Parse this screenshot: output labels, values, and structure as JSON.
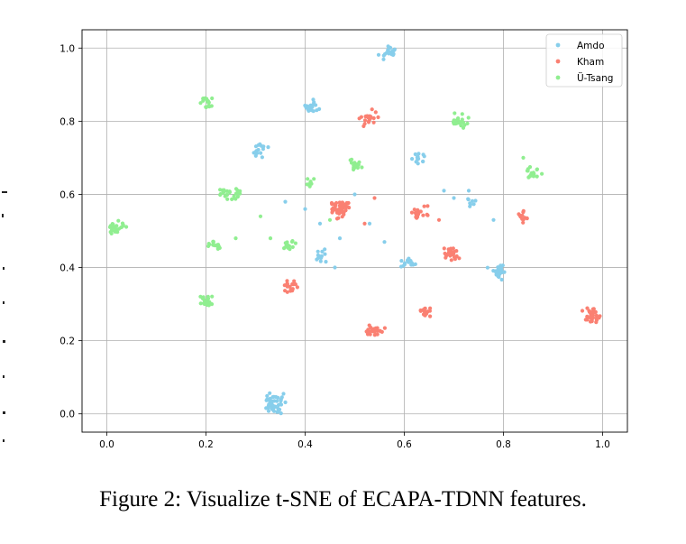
{
  "caption": "Figure 2: Visualize t-SNE of ECAPA-TDNN features.",
  "chart_data": {
    "type": "scatter",
    "xlim": [
      -0.05,
      1.05
    ],
    "ylim": [
      -0.05,
      1.05
    ],
    "x_ticks": [
      "0.0",
      "0.2",
      "0.4",
      "0.6",
      "0.8",
      "1.0"
    ],
    "y_ticks": [
      "0.0",
      "0.2",
      "0.4",
      "0.6",
      "0.8",
      "1.0"
    ],
    "x_tick_values": [
      0,
      0.2,
      0.4,
      0.6,
      0.8,
      1.0
    ],
    "y_tick_values": [
      0,
      0.2,
      0.4,
      0.6,
      0.8,
      1.0
    ],
    "grid": true,
    "legend_position": "top-right",
    "series": [
      {
        "name": "Amdo",
        "color": "#87ceeb",
        "clusters": [
          {
            "x": 0.57,
            "y": 0.99,
            "n": 22
          },
          {
            "x": 0.41,
            "y": 0.84,
            "n": 20
          },
          {
            "x": 0.31,
            "y": 0.72,
            "n": 16
          },
          {
            "x": 0.63,
            "y": 0.7,
            "n": 14
          },
          {
            "x": 0.73,
            "y": 0.58,
            "n": 8
          },
          {
            "x": 0.43,
            "y": 0.43,
            "n": 12
          },
          {
            "x": 0.61,
            "y": 0.41,
            "n": 14
          },
          {
            "x": 0.79,
            "y": 0.39,
            "n": 24
          },
          {
            "x": 0.34,
            "y": 0.03,
            "n": 50
          }
        ],
        "scattered": [
          [
            0.36,
            0.58
          ],
          [
            0.4,
            0.56
          ],
          [
            0.43,
            0.52
          ],
          [
            0.47,
            0.48
          ],
          [
            0.46,
            0.4
          ],
          [
            0.53,
            0.52
          ],
          [
            0.56,
            0.47
          ],
          [
            0.68,
            0.61
          ],
          [
            0.7,
            0.59
          ],
          [
            0.78,
            0.53
          ],
          [
            0.73,
            0.61
          ],
          [
            0.5,
            0.6
          ]
        ]
      },
      {
        "name": "Kham",
        "color": "#fa8072",
        "clusters": [
          {
            "x": 0.53,
            "y": 0.81,
            "n": 22
          },
          {
            "x": 0.47,
            "y": 0.56,
            "n": 50
          },
          {
            "x": 0.63,
            "y": 0.55,
            "n": 20
          },
          {
            "x": 0.84,
            "y": 0.54,
            "n": 12
          },
          {
            "x": 0.69,
            "y": 0.44,
            "n": 24
          },
          {
            "x": 0.37,
            "y": 0.35,
            "n": 18
          },
          {
            "x": 0.64,
            "y": 0.28,
            "n": 16
          },
          {
            "x": 0.54,
            "y": 0.23,
            "n": 22
          },
          {
            "x": 0.98,
            "y": 0.27,
            "n": 30
          }
        ],
        "scattered": [
          [
            0.54,
            0.59
          ],
          [
            0.52,
            0.52
          ],
          [
            0.67,
            0.53
          ]
        ]
      },
      {
        "name": "Ü-Tsang",
        "color": "#90ee90",
        "clusters": [
          {
            "x": 0.2,
            "y": 0.85,
            "n": 18
          },
          {
            "x": 0.71,
            "y": 0.8,
            "n": 24
          },
          {
            "x": 0.5,
            "y": 0.68,
            "n": 16
          },
          {
            "x": 0.86,
            "y": 0.66,
            "n": 18
          },
          {
            "x": 0.41,
            "y": 0.63,
            "n": 8
          },
          {
            "x": 0.25,
            "y": 0.6,
            "n": 26
          },
          {
            "x": 0.02,
            "y": 0.51,
            "n": 26
          },
          {
            "x": 0.22,
            "y": 0.46,
            "n": 16
          },
          {
            "x": 0.37,
            "y": 0.46,
            "n": 14
          },
          {
            "x": 0.2,
            "y": 0.31,
            "n": 20
          }
        ],
        "scattered": [
          [
            0.31,
            0.54
          ],
          [
            0.33,
            0.48
          ],
          [
            0.26,
            0.48
          ],
          [
            0.84,
            0.7
          ],
          [
            0.45,
            0.53
          ]
        ]
      }
    ]
  }
}
